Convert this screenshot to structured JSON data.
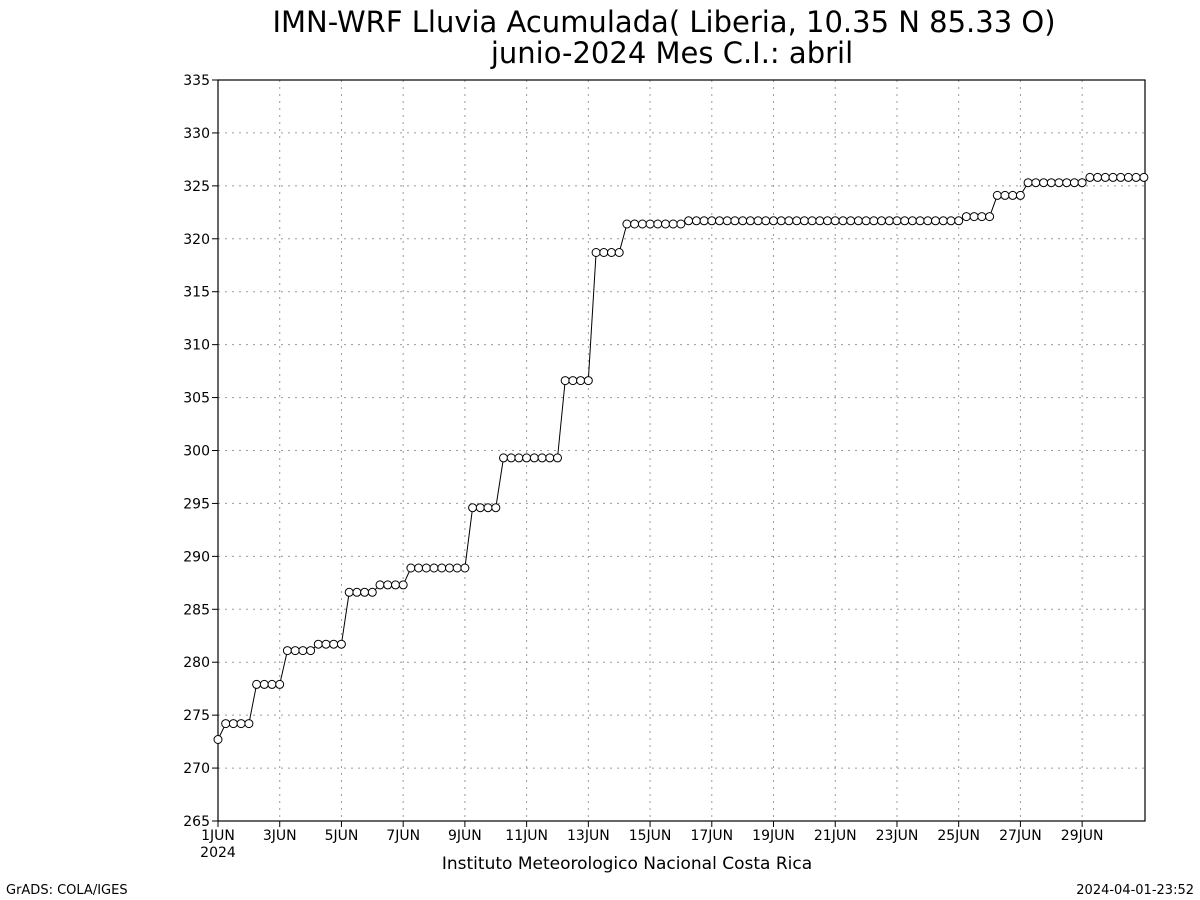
{
  "chart_data": {
    "type": "line",
    "title": "IMN-WRF  Lluvia Acumulada( Liberia, 10.35  N 85.33  O)",
    "subtitle": "junio-2024 Mes C.I.: abril",
    "xlabel": "",
    "ylabel": "",
    "ylim": [
      265,
      335
    ],
    "yticks": [
      265,
      270,
      275,
      280,
      285,
      290,
      295,
      300,
      305,
      310,
      315,
      320,
      325,
      330,
      335
    ],
    "xlim": [
      1,
      30
    ],
    "xticks": [
      {
        "day": 1,
        "label": "1JUN"
      },
      {
        "day": 3,
        "label": "3JUN"
      },
      {
        "day": 5,
        "label": "5JUN"
      },
      {
        "day": 7,
        "label": "7JUN"
      },
      {
        "day": 9,
        "label": "9JUN"
      },
      {
        "day": 11,
        "label": "11JUN"
      },
      {
        "day": 13,
        "label": "13JUN"
      },
      {
        "day": 15,
        "label": "15JUN"
      },
      {
        "day": 17,
        "label": "17JUN"
      },
      {
        "day": 19,
        "label": "19JUN"
      },
      {
        "day": 21,
        "label": "21JUN"
      },
      {
        "day": 23,
        "label": "23JUN"
      },
      {
        "day": 25,
        "label": "25JUN"
      },
      {
        "day": 27,
        "label": "27JUN"
      },
      {
        "day": 29,
        "label": "29JUN"
      }
    ],
    "year_label": "2024",
    "grid": true,
    "marker": "open-circle",
    "line_color": "#000000",
    "series": [
      {
        "x_start_day": 1,
        "step_days": 0.25,
        "values": [
          272.7,
          274.2,
          274.2,
          274.2,
          274.2,
          277.9,
          277.9,
          277.9,
          277.9,
          281.1,
          281.1,
          281.1,
          281.1,
          281.7,
          281.7,
          281.7,
          281.7,
          286.6,
          286.6,
          286.6,
          286.6,
          287.3,
          287.3,
          287.3,
          287.3,
          288.9,
          288.9,
          288.9,
          288.9,
          288.9,
          288.9,
          288.9,
          288.9,
          294.6,
          294.6,
          294.6,
          294.6,
          299.3,
          299.3,
          299.3,
          299.3,
          299.3,
          299.3,
          299.3,
          299.3,
          306.6,
          306.6,
          306.6,
          306.6,
          318.7,
          318.7,
          318.7,
          318.7,
          321.4,
          321.4,
          321.4,
          321.4,
          321.4,
          321.4,
          321.4,
          321.4,
          321.7,
          321.7,
          321.7,
          321.7,
          321.7,
          321.7,
          321.7,
          321.7,
          321.7,
          321.7,
          321.7,
          321.7,
          321.7,
          321.7,
          321.7,
          321.7,
          321.7,
          321.7,
          321.7,
          321.7,
          321.7,
          321.7,
          321.7,
          321.7,
          321.7,
          321.7,
          321.7,
          321.7,
          321.7,
          321.7,
          321.7,
          321.7,
          321.7,
          321.7,
          321.7,
          321.7,
          322.1,
          322.1,
          322.1,
          322.1,
          324.1,
          324.1,
          324.1,
          324.1,
          325.3,
          325.3,
          325.3,
          325.3,
          325.3,
          325.3,
          325.3,
          325.3,
          325.8,
          325.8,
          325.8,
          325.8,
          325.8,
          325.8,
          325.8,
          325.8
        ]
      }
    ]
  },
  "footer": {
    "institution": "Instituto Meteorologico Nacional Costa Rica",
    "credit_left": "GrADS: COLA/IGES",
    "timestamp": "2024-04-01-23:52"
  }
}
